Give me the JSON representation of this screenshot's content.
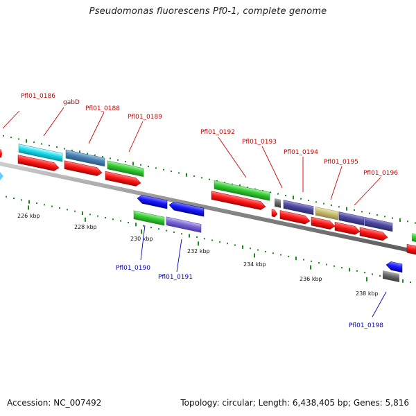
{
  "title": "Pseudomonas fluorescens Pf0-1, complete genome",
  "footer": {
    "accession": "Accession: NC_007492",
    "summary": "Topology: circular; Length: 6,438,405 bp; Genes: 5,816"
  },
  "axis": {
    "tick_labels": [
      "226 kbp",
      "228 kbp",
      "230 kbp",
      "232 kbp",
      "234 kbp",
      "236 kbp",
      "238 kbp"
    ]
  },
  "colors": {
    "forward_label": "#cc0000",
    "reverse_label": "#0000bb",
    "cds_forward": "#ff1a1a",
    "cds_reverse": "#1a1aff",
    "backbone": "#8a8a8a",
    "gc_dots": "#1a8a1a"
  },
  "gene_labels": {
    "forward": [
      "Pfl01_0186",
      "gabD",
      "Pfl01_0188",
      "Pfl01_0189",
      "Pfl01_0192",
      "Pfl01_0193",
      "Pfl01_0194",
      "Pfl01_0195",
      "Pfl01_0196"
    ],
    "reverse": [
      "Pfl01_0190",
      "Pfl01_0191",
      "Pfl01_0198"
    ]
  }
}
